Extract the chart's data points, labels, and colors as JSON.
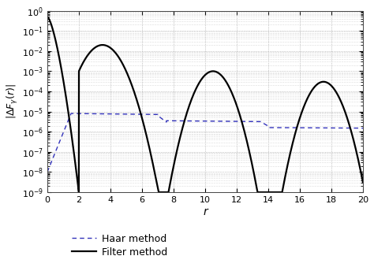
{
  "title": "",
  "xlabel": "r",
  "ylabel": "$|\\Delta F_{\\gamma}(r)|$",
  "xlim": [
    0,
    20
  ],
  "ylim_log": [
    -9,
    0
  ],
  "x_ticks": [
    0,
    2,
    4,
    6,
    8,
    10,
    12,
    14,
    16,
    18,
    20
  ],
  "haar_color": "#3333bb",
  "filter_color": "#000000",
  "haar_linestyle": "--",
  "filter_linestyle": "-",
  "haar_label": "Haar method",
  "filter_label": "Filter method",
  "haar_linewidth": 1.0,
  "filter_linewidth": 1.6,
  "background": "#ffffff",
  "grid_major_color": "#999999",
  "grid_minor_color": "#bbbbbb"
}
